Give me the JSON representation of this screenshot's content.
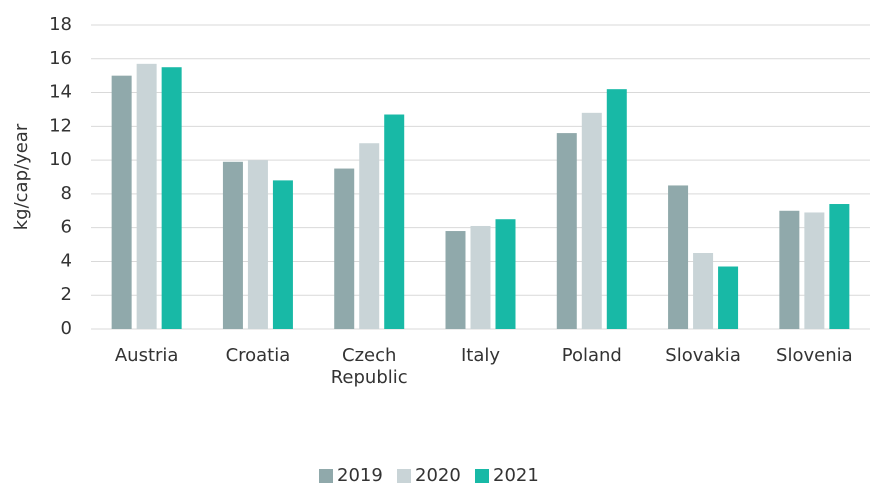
{
  "chart_data": {
    "type": "bar",
    "y_label": "kg/cap/year",
    "categories": [
      "Austria",
      "Croatia",
      "Czech Republic",
      "Italy",
      "Poland",
      "Slovakia",
      "Slovenia"
    ],
    "series": [
      {
        "name": "2019",
        "color": "#90a9ab",
        "values": [
          15.0,
          9.9,
          9.5,
          5.8,
          11.6,
          8.5,
          7.0
        ]
      },
      {
        "name": "2020",
        "color": "#c9d4d7",
        "values": [
          15.7,
          10.0,
          11.0,
          6.1,
          12.8,
          4.5,
          6.9
        ]
      },
      {
        "name": "2021",
        "color": "#18b9a6",
        "values": [
          15.5,
          8.8,
          12.7,
          6.5,
          14.2,
          3.7,
          7.4
        ]
      }
    ],
    "ylim": [
      0,
      18
    ],
    "yticks": [
      0,
      2,
      4,
      6,
      8,
      10,
      12,
      14,
      16,
      18
    ],
    "grid": true,
    "legend": "bottom"
  }
}
